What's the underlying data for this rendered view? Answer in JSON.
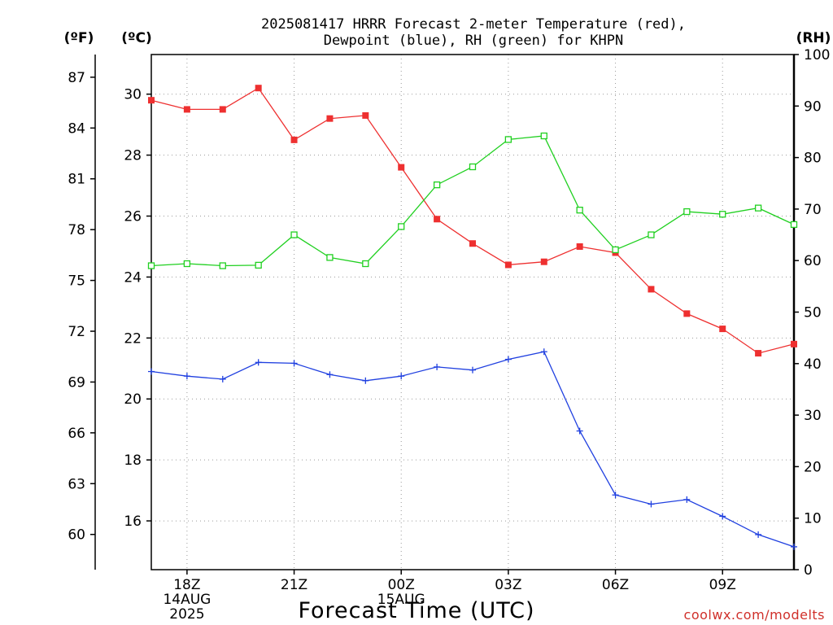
{
  "chart_data": {
    "type": "line",
    "title_line1": "2025081417 HRRR Forecast 2-meter Temperature (red),",
    "title_line2": "Dewpoint (blue), RH (green) for KHPN",
    "xlabel": "Forecast Time (UTC)",
    "credit": "coolwx.com/modelts",
    "unit_f": "(ºF)",
    "unit_c": "(ºC)",
    "unit_rh": "(RH)",
    "x_ticks": [
      {
        "hour": 18,
        "label": "18Z",
        "sub1": "14AUG",
        "sub2": "2025"
      },
      {
        "hour": 21,
        "label": "21Z",
        "sub1": "",
        "sub2": ""
      },
      {
        "hour": 24,
        "label": "00Z",
        "sub1": "15AUG",
        "sub2": ""
      },
      {
        "hour": 27,
        "label": "03Z",
        "sub1": "",
        "sub2": ""
      },
      {
        "hour": 30,
        "label": "06Z",
        "sub1": "",
        "sub2": ""
      },
      {
        "hour": 33,
        "label": "09Z",
        "sub1": "",
        "sub2": ""
      }
    ],
    "x_range_hours": [
      17,
      35
    ],
    "celsius_range": [
      14.4,
      31.3
    ],
    "celsius_ticks": [
      16,
      18,
      20,
      22,
      24,
      26,
      28,
      30
    ],
    "fahrenheit_ticks": [
      60,
      63,
      66,
      69,
      72,
      75,
      78,
      81,
      84,
      87
    ],
    "rh_range": [
      0,
      100
    ],
    "rh_ticks": [
      0,
      10,
      20,
      30,
      40,
      50,
      60,
      70,
      80,
      90,
      100
    ],
    "grid": true,
    "hours": [
      17,
      18,
      19,
      20,
      21,
      22,
      23,
      24,
      25,
      26,
      27,
      28,
      29,
      30,
      31,
      32,
      33,
      34,
      35
    ],
    "series": [
      {
        "name": "Temperature",
        "color": "#ee3030",
        "axis": "celsius",
        "marker": "filled-square",
        "values": [
          29.8,
          29.5,
          29.5,
          30.2,
          28.5,
          29.2,
          29.3,
          27.6,
          25.9,
          25.1,
          24.4,
          24.5,
          25.0,
          24.8,
          23.6,
          22.8,
          22.3,
          21.5,
          21.8
        ]
      },
      {
        "name": "Dewpoint",
        "color": "#2040e0",
        "axis": "celsius",
        "marker": "plus",
        "values": [
          20.9,
          20.75,
          20.65,
          21.2,
          21.17,
          20.8,
          20.6,
          20.75,
          21.05,
          20.95,
          21.3,
          21.55,
          18.95,
          16.85,
          16.55,
          16.7,
          16.15,
          15.55,
          15.15
        ]
      },
      {
        "name": "RH",
        "color": "#20d020",
        "axis": "rh",
        "marker": "open-square",
        "values": [
          59,
          59.4,
          59,
          59.1,
          65,
          60.6,
          59.4,
          66.6,
          74.7,
          78.2,
          83.5,
          84.2,
          69.8,
          62.1,
          65,
          69.5,
          69,
          70.2,
          67
        ]
      }
    ]
  }
}
